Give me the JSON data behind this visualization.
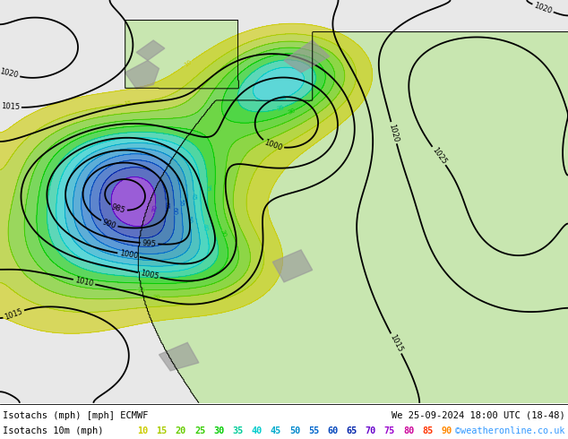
{
  "title_line1": "Isotachs (mph) [mph] ECMWF",
  "title_line2": "We 25-09-2024 18:00 UTC (18-48)",
  "legend_label": "Isotachs 10m (mph)",
  "copyright": "©weatheronline.co.uk",
  "legend_values": [
    "10",
    "15",
    "20",
    "25",
    "30",
    "35",
    "40",
    "45",
    "50",
    "55",
    "60",
    "65",
    "70",
    "75",
    "80",
    "85",
    "90"
  ],
  "legend_colors": [
    "#cccc00",
    "#aacc00",
    "#66cc00",
    "#33cc00",
    "#00cc00",
    "#00cc99",
    "#00cccc",
    "#00aacc",
    "#0088cc",
    "#0066cc",
    "#0044bb",
    "#0022aa",
    "#6600cc",
    "#9900cc",
    "#cc0099",
    "#ff3300",
    "#ff8800"
  ],
  "ocean_color": "#e8e8e8",
  "land_color": "#c8e6b0",
  "legend_bg": "#ffffff",
  "fig_width": 6.34,
  "fig_height": 4.9,
  "dpi": 100,
  "pressure_levels": [
    985,
    990,
    995,
    1000,
    1005,
    1010,
    1015,
    1020,
    1025
  ],
  "isotach_levels": [
    10,
    15,
    20,
    25,
    30,
    35,
    40,
    45,
    50,
    55,
    60,
    65,
    70,
    75,
    80,
    85,
    90,
    100
  ]
}
